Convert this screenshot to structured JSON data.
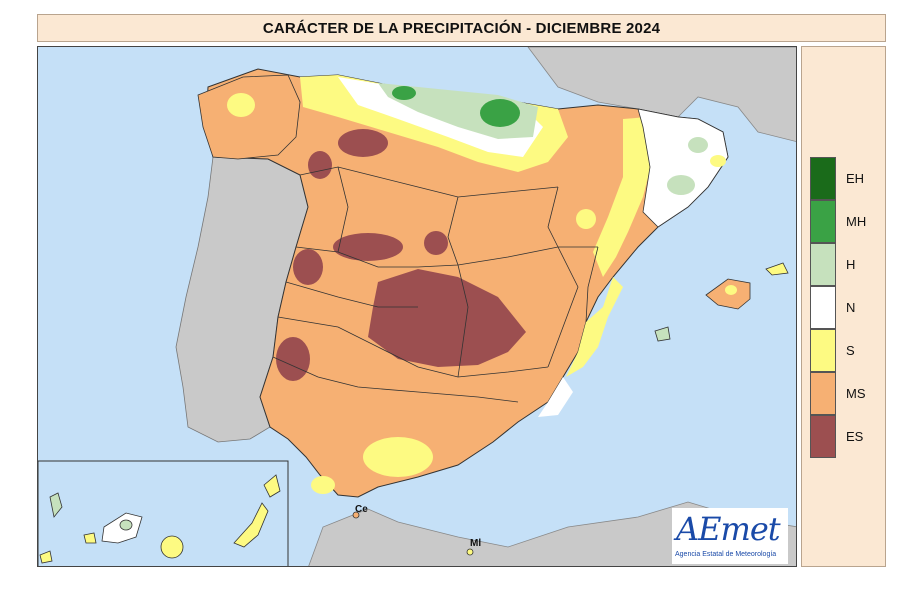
{
  "title": "CARÁCTER DE LA PRECIPITACIÓN - DICIEMBRE 2024",
  "legend": [
    {
      "code": "EH",
      "color": "#1a6b1a"
    },
    {
      "code": "MH",
      "color": "#3aa245"
    },
    {
      "code": "H",
      "color": "#c6e1bd"
    },
    {
      "code": "N",
      "color": "#ffffff"
    },
    {
      "code": "S",
      "color": "#fdfa82"
    },
    {
      "code": "MS",
      "color": "#f6b073"
    },
    {
      "code": "ES",
      "color": "#9c4f50"
    }
  ],
  "cities": {
    "ceuta": "Ce",
    "melilla": "Ml"
  },
  "logo": {
    "word": "AEmet",
    "subtitle": "Agencia Estatal de Meteorología"
  },
  "colors": {
    "sea": "#c5e0f7",
    "other_land": "#c9c9c9",
    "border": "#333333"
  }
}
